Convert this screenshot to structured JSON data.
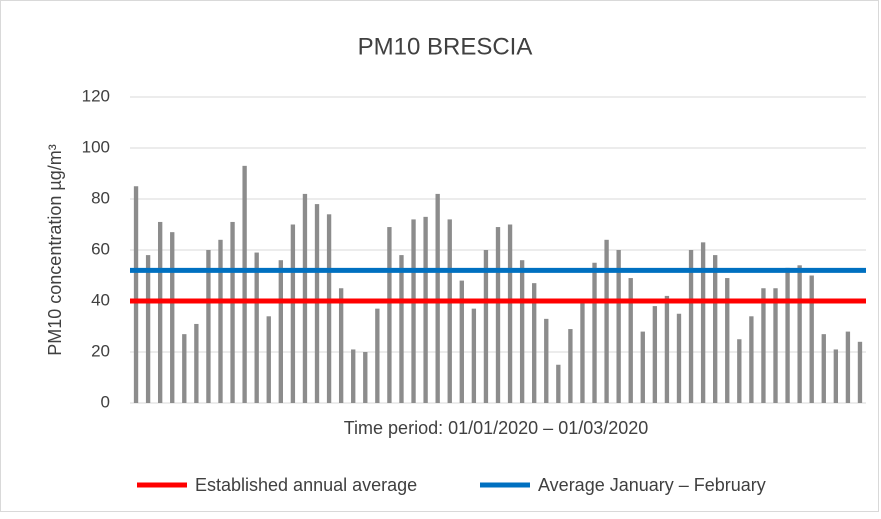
{
  "chart_data": {
    "type": "bar",
    "title": "PM10 BRESCIA",
    "ylabel": "PM10 concentration µg/m³",
    "xlabel": "Time period: 01/01/2020 – 01/03/2020",
    "categories": [
      null,
      null,
      null,
      null,
      null,
      null,
      null,
      null,
      null,
      null,
      null,
      null,
      null,
      null,
      null,
      null,
      null,
      null,
      null,
      null,
      null,
      null,
      null,
      null,
      null,
      null,
      null,
      null,
      null,
      null,
      null,
      null,
      null,
      null,
      null,
      null,
      null,
      null,
      null,
      null,
      null,
      null,
      null,
      null,
      null,
      null,
      null,
      null,
      null,
      null,
      null,
      null,
      null,
      null,
      null,
      null,
      null,
      null,
      null,
      null,
      null
    ],
    "values": [
      85,
      58,
      71,
      67,
      27,
      31,
      60,
      64,
      71,
      93,
      59,
      34,
      56,
      70,
      82,
      78,
      74,
      45,
      21,
      20,
      37,
      69,
      58,
      72,
      73,
      82,
      72,
      48,
      37,
      60,
      69,
      70,
      56,
      47,
      33,
      15,
      29,
      40,
      55,
      64,
      60,
      49,
      28,
      38,
      42,
      35,
      60,
      63,
      58,
      49,
      25,
      34,
      45,
      45,
      53,
      54,
      50,
      27,
      21,
      28,
      24
    ],
    "color": "#8c8c8c",
    "reference_lines": [
      {
        "name": "Established annual average",
        "value": 40,
        "color": "#ff0000"
      },
      {
        "name": "Average January – February",
        "value": 52,
        "color": "#0070c0"
      }
    ],
    "ylim": [
      0,
      120
    ],
    "yticks": [
      0,
      20,
      40,
      60,
      80,
      100,
      120
    ],
    "grid": true
  }
}
